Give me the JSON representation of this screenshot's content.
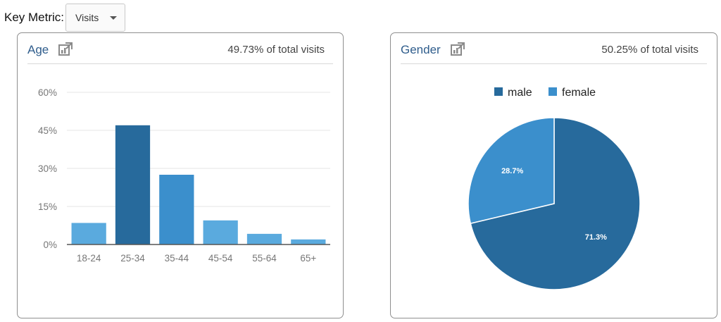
{
  "toolbar": {
    "key_metric_label": "Key Metric:",
    "key_metric_value": "Visits"
  },
  "panels": {
    "age": {
      "title": "Age",
      "subtitle": "49.73% of total visits",
      "icon": "export-chart-icon"
    },
    "gender": {
      "title": "Gender",
      "subtitle": "50.25% of total visits",
      "icon": "export-chart-icon"
    }
  },
  "colors": {
    "accent_dark": "#276a9c",
    "accent_mid": "#3b8fcc",
    "accent_light": "#5aaade",
    "title_blue": "#2f5d8c"
  },
  "chart_data": [
    {
      "type": "bar",
      "categories": [
        "18-24",
        "25-34",
        "35-44",
        "45-54",
        "55-64",
        "65+"
      ],
      "values": [
        8.5,
        47,
        27.5,
        9.5,
        4.2,
        2
      ],
      "bar_colors": [
        "#5aaade",
        "#276a9c",
        "#3b8fcc",
        "#5aaade",
        "#5aaade",
        "#5aaade"
      ],
      "yticks": [
        0,
        15,
        30,
        45,
        60
      ],
      "ytick_labels": [
        "0%",
        "15%",
        "30%",
        "45%",
        "60%"
      ],
      "ylim": [
        0,
        60
      ],
      "grid": true,
      "title": "",
      "xlabel": "",
      "ylabel": ""
    },
    {
      "type": "pie",
      "categories": [
        "male",
        "female"
      ],
      "values": [
        71.3,
        28.7
      ],
      "labels": [
        "71.3%",
        "28.7%"
      ],
      "colors": [
        "#276a9c",
        "#3b8fcc"
      ],
      "legend": "top"
    }
  ]
}
